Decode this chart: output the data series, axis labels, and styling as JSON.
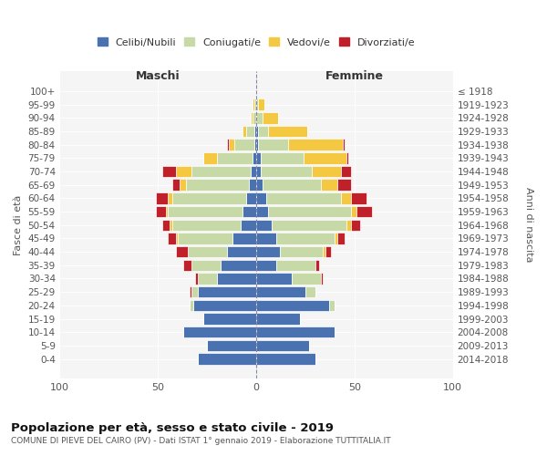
{
  "age_groups": [
    "0-4",
    "5-9",
    "10-14",
    "15-19",
    "20-24",
    "25-29",
    "30-34",
    "35-39",
    "40-44",
    "45-49",
    "50-54",
    "55-59",
    "60-64",
    "65-69",
    "70-74",
    "75-79",
    "80-84",
    "85-89",
    "90-94",
    "95-99",
    "100+"
  ],
  "birth_years": [
    "2014-2018",
    "2009-2013",
    "2004-2008",
    "1999-2003",
    "1994-1998",
    "1989-1993",
    "1984-1988",
    "1979-1983",
    "1974-1978",
    "1969-1973",
    "1964-1968",
    "1959-1963",
    "1954-1958",
    "1949-1953",
    "1944-1948",
    "1939-1943",
    "1934-1938",
    "1929-1933",
    "1924-1928",
    "1919-1923",
    "≤ 1918"
  ],
  "maschi": {
    "celibi": [
      30,
      25,
      37,
      27,
      32,
      30,
      20,
      18,
      15,
      12,
      8,
      7,
      5,
      4,
      3,
      2,
      1,
      1,
      0,
      0,
      0
    ],
    "coniugati": [
      0,
      0,
      0,
      0,
      2,
      3,
      10,
      15,
      20,
      28,
      35,
      38,
      38,
      32,
      30,
      18,
      10,
      4,
      2,
      1,
      0
    ],
    "vedovi": [
      0,
      0,
      0,
      0,
      0,
      0,
      0,
      0,
      0,
      1,
      1,
      1,
      2,
      3,
      8,
      7,
      3,
      2,
      1,
      1,
      0
    ],
    "divorziati": [
      0,
      0,
      0,
      0,
      0,
      1,
      1,
      4,
      6,
      4,
      4,
      5,
      6,
      4,
      7,
      0,
      1,
      0,
      0,
      0,
      0
    ]
  },
  "femmine": {
    "nubili": [
      30,
      27,
      40,
      22,
      37,
      25,
      18,
      10,
      12,
      10,
      8,
      6,
      5,
      3,
      2,
      2,
      1,
      1,
      0,
      0,
      0
    ],
    "coniugate": [
      0,
      0,
      0,
      0,
      3,
      5,
      15,
      20,
      22,
      30,
      38,
      42,
      38,
      30,
      26,
      22,
      15,
      5,
      3,
      1,
      0
    ],
    "vedove": [
      0,
      0,
      0,
      0,
      0,
      0,
      0,
      0,
      1,
      1,
      2,
      3,
      5,
      8,
      15,
      22,
      28,
      20,
      8,
      3,
      0
    ],
    "divorziate": [
      0,
      0,
      0,
      0,
      0,
      0,
      1,
      2,
      3,
      4,
      5,
      8,
      8,
      7,
      5,
      1,
      1,
      0,
      0,
      0,
      0
    ]
  },
  "colors": {
    "celibi": "#4a72b0",
    "coniugati": "#c8d9a8",
    "vedovi": "#f5c842",
    "divorziati": "#c0202a"
  },
  "title": "Popolazione per età, sesso e stato civile - 2019",
  "subtitle": "COMUNE DI PIEVE DEL CAIRO (PV) - Dati ISTAT 1° gennaio 2019 - Elaborazione TUTTITALIA.IT",
  "xlabel_left": "Maschi",
  "xlabel_right": "Femmine",
  "ylabel_left": "Fasce di età",
  "ylabel_right": "Anni di nascita",
  "xlim": 100,
  "legend_labels": [
    "Celibi/Nubili",
    "Coniugati/e",
    "Vedovi/e",
    "Divorziati/e"
  ],
  "bg_color": "#f0f0f0",
  "plot_bg": "#f5f5f5",
  "bar_edge_color": "white",
  "bar_lw": 0.5
}
